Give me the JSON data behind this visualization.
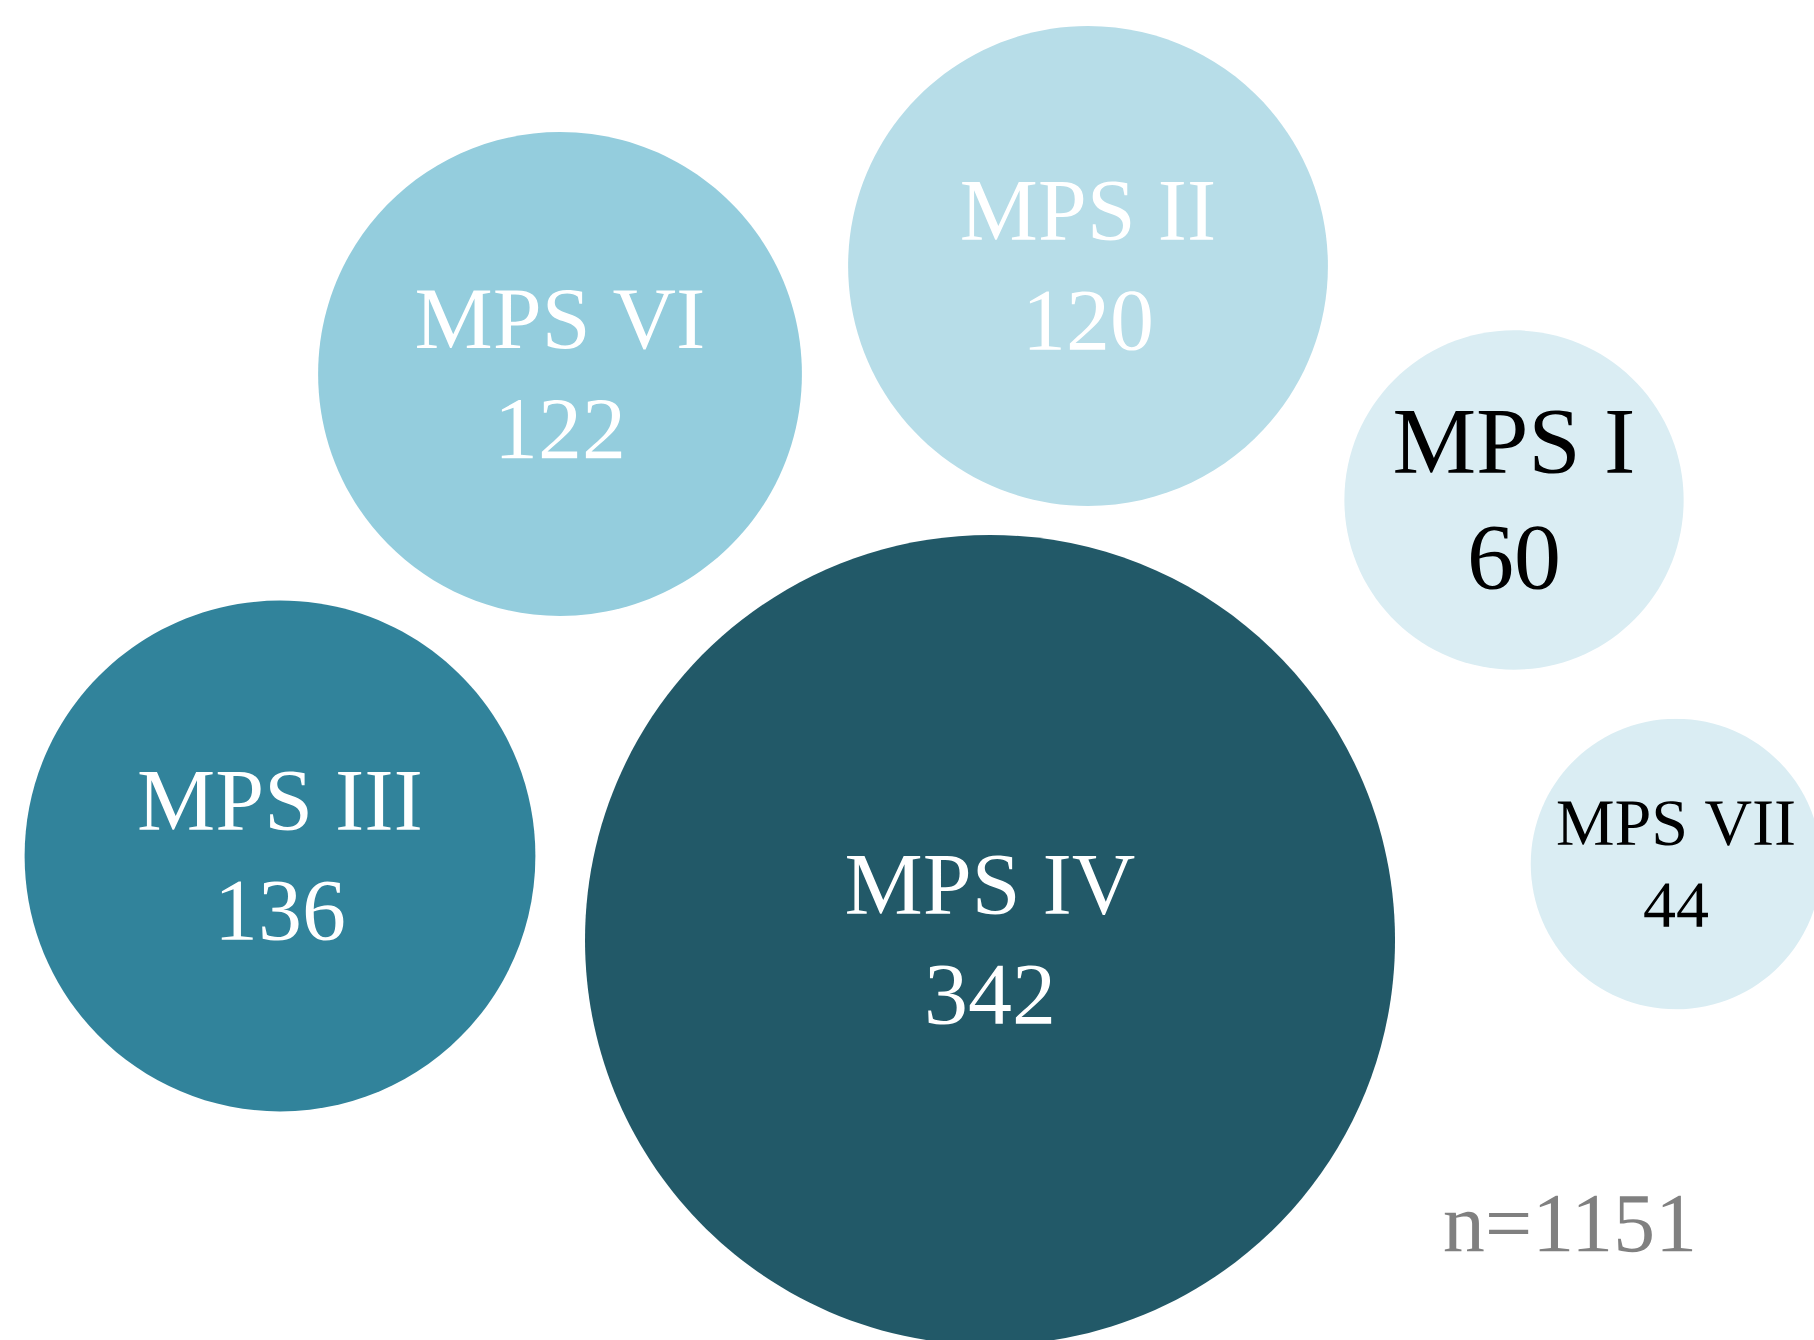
{
  "chart_data": {
    "type": "other",
    "categories": [
      "MPS IV",
      "MPS III",
      "MPS VI",
      "MPS II",
      "MPS I",
      "MPS VII"
    ],
    "values": [
      342,
      136,
      122,
      120,
      60,
      44
    ],
    "colors": [
      "#225968",
      "#31839b",
      "#94cddd",
      "#b7dde8",
      "#daedf3",
      "#daedf3"
    ],
    "data_labels": true,
    "annotations": [
      "n=1151"
    ]
  }
}
